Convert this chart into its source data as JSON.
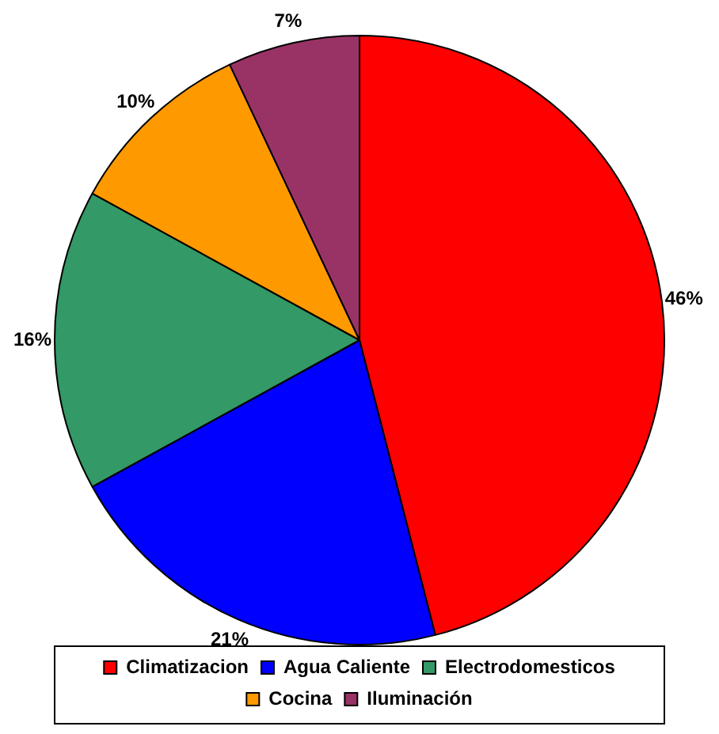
{
  "chart_data": {
    "type": "pie",
    "categories": [
      "Climatizacion",
      "Agua Caliente",
      "Electrodomesticos",
      "Cocina",
      "Iluminación"
    ],
    "values": [
      46,
      21,
      16,
      10,
      7
    ],
    "colors": [
      "#ff0000",
      "#0000ff",
      "#339966",
      "#ff9900",
      "#993366"
    ],
    "value_labels": [
      "46%",
      "21%",
      "16%",
      "10%",
      "7%"
    ],
    "legend": "bottom"
  }
}
